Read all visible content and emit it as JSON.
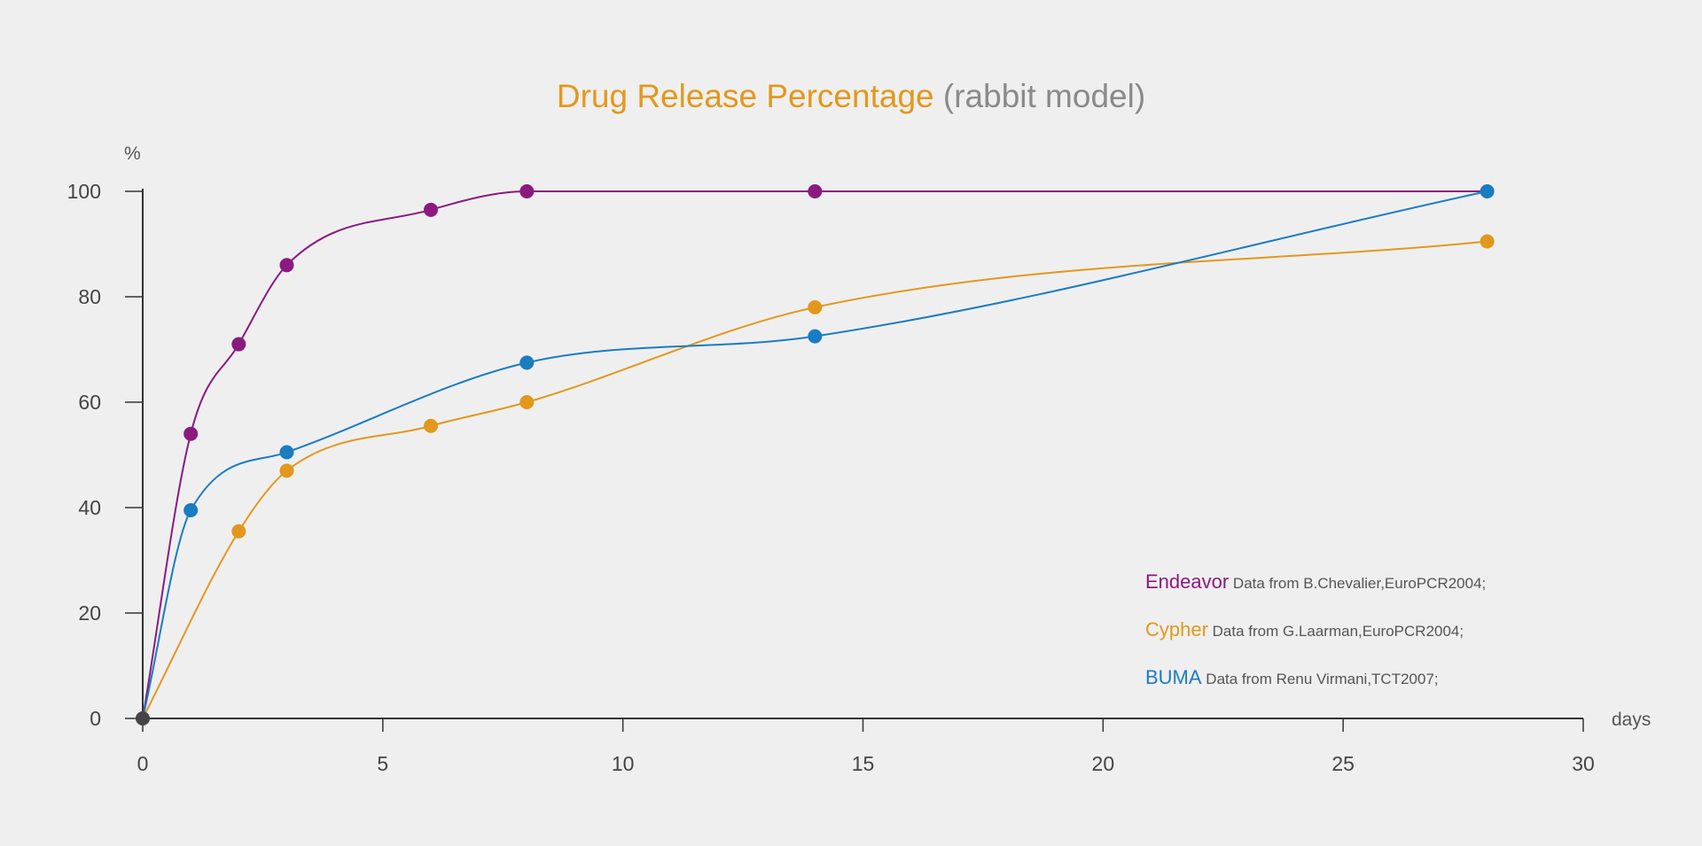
{
  "chart_data": {
    "type": "line",
    "title": "Drug Release Percentage",
    "subtitle": "(rabbit model)",
    "xlabel": "days",
    "ylabel": "%",
    "xlim": [
      0,
      30
    ],
    "ylim": [
      0,
      100
    ],
    "xticks": [
      0,
      5,
      10,
      15,
      20,
      25,
      30
    ],
    "yticks": [
      0,
      20,
      40,
      60,
      80,
      100
    ],
    "grid": false,
    "legend_position": "bottom-right",
    "series": [
      {
        "name": "Endeavor",
        "note": "Data from B.Chevalier,EuroPCR2004;",
        "color": "#8b1a80",
        "points": [
          [
            0,
            0
          ],
          [
            1,
            54
          ],
          [
            2,
            71
          ],
          [
            3,
            86
          ],
          [
            6,
            96.5
          ],
          [
            8,
            100
          ],
          [
            14,
            100
          ],
          [
            28,
            100
          ]
        ],
        "markers": [
          [
            1,
            54
          ],
          [
            2,
            71
          ],
          [
            3,
            86
          ],
          [
            6,
            96.5
          ],
          [
            8,
            100
          ],
          [
            14,
            100
          ]
        ]
      },
      {
        "name": "Cypher",
        "note": "Data from G.Laarman,EuroPCR2004;",
        "color": "#e2981c",
        "points": [
          [
            0,
            0
          ],
          [
            2,
            35.5
          ],
          [
            3,
            47
          ],
          [
            6,
            55.5
          ],
          [
            8,
            60
          ],
          [
            14,
            78
          ],
          [
            28,
            90.5
          ]
        ],
        "markers": [
          [
            2,
            35.5
          ],
          [
            3,
            47
          ],
          [
            6,
            55.5
          ],
          [
            8,
            60
          ],
          [
            14,
            78
          ],
          [
            28,
            90.5
          ]
        ]
      },
      {
        "name": "BUMA",
        "note": "Data from Renu Virmani,TCT2007;",
        "color": "#1a7cc1",
        "points": [
          [
            0,
            0
          ],
          [
            1,
            39.5
          ],
          [
            3,
            50.5
          ],
          [
            8,
            67.5
          ],
          [
            14,
            72.5
          ],
          [
            28,
            100
          ]
        ],
        "markers": [
          [
            1,
            39.5
          ],
          [
            3,
            50.5
          ],
          [
            8,
            67.5
          ],
          [
            14,
            72.5
          ],
          [
            28,
            100
          ]
        ]
      }
    ],
    "origin_marker_color": "#444444"
  }
}
